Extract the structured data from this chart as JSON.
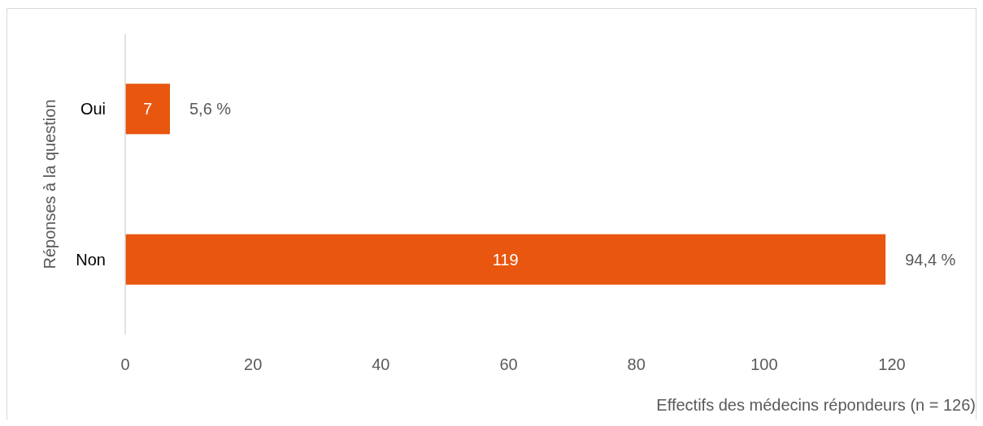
{
  "chart_data": {
    "type": "bar",
    "orientation": "horizontal",
    "categories": [
      "Oui",
      "Non"
    ],
    "values": [
      7,
      119
    ],
    "color": "#e8560f",
    "xlim": [
      0,
      120
    ],
    "xticks": [
      0,
      20,
      40,
      60,
      80,
      100,
      120
    ],
    "xlabel": "Effectifs des médecins répondeurs (n = 126)",
    "ylabel": "Réponses à la question",
    "data_labels": true,
    "grid": false,
    "annotations": [
      {
        "text": "5,6 %",
        "x": 7,
        "y": "Oui"
      },
      {
        "text": "94,4 %",
        "x": 119,
        "y": "Non"
      }
    ]
  }
}
